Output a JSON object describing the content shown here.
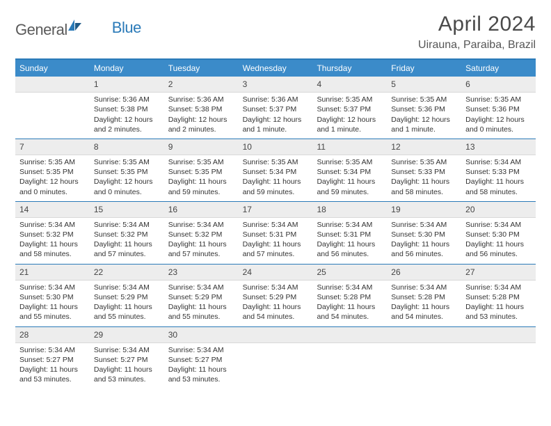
{
  "logo": {
    "text1": "General",
    "text2": "Blue"
  },
  "title": "April 2024",
  "location": "Uirauna, Paraiba, Brazil",
  "day_names": [
    "Sunday",
    "Monday",
    "Tuesday",
    "Wednesday",
    "Thursday",
    "Friday",
    "Saturday"
  ],
  "colors": {
    "header_bar": "#3b8bc9",
    "accent_line": "#2a7ab8",
    "daynum_bg": "#ededed"
  },
  "weeks": [
    [
      null,
      {
        "n": "1",
        "sr": "Sunrise: 5:36 AM",
        "ss": "Sunset: 5:38 PM",
        "dl": "Daylight: 12 hours and 2 minutes."
      },
      {
        "n": "2",
        "sr": "Sunrise: 5:36 AM",
        "ss": "Sunset: 5:38 PM",
        "dl": "Daylight: 12 hours and 2 minutes."
      },
      {
        "n": "3",
        "sr": "Sunrise: 5:36 AM",
        "ss": "Sunset: 5:37 PM",
        "dl": "Daylight: 12 hours and 1 minute."
      },
      {
        "n": "4",
        "sr": "Sunrise: 5:35 AM",
        "ss": "Sunset: 5:37 PM",
        "dl": "Daylight: 12 hours and 1 minute."
      },
      {
        "n": "5",
        "sr": "Sunrise: 5:35 AM",
        "ss": "Sunset: 5:36 PM",
        "dl": "Daylight: 12 hours and 1 minute."
      },
      {
        "n": "6",
        "sr": "Sunrise: 5:35 AM",
        "ss": "Sunset: 5:36 PM",
        "dl": "Daylight: 12 hours and 0 minutes."
      }
    ],
    [
      {
        "n": "7",
        "sr": "Sunrise: 5:35 AM",
        "ss": "Sunset: 5:35 PM",
        "dl": "Daylight: 12 hours and 0 minutes."
      },
      {
        "n": "8",
        "sr": "Sunrise: 5:35 AM",
        "ss": "Sunset: 5:35 PM",
        "dl": "Daylight: 12 hours and 0 minutes."
      },
      {
        "n": "9",
        "sr": "Sunrise: 5:35 AM",
        "ss": "Sunset: 5:35 PM",
        "dl": "Daylight: 11 hours and 59 minutes."
      },
      {
        "n": "10",
        "sr": "Sunrise: 5:35 AM",
        "ss": "Sunset: 5:34 PM",
        "dl": "Daylight: 11 hours and 59 minutes."
      },
      {
        "n": "11",
        "sr": "Sunrise: 5:35 AM",
        "ss": "Sunset: 5:34 PM",
        "dl": "Daylight: 11 hours and 59 minutes."
      },
      {
        "n": "12",
        "sr": "Sunrise: 5:35 AM",
        "ss": "Sunset: 5:33 PM",
        "dl": "Daylight: 11 hours and 58 minutes."
      },
      {
        "n": "13",
        "sr": "Sunrise: 5:34 AM",
        "ss": "Sunset: 5:33 PM",
        "dl": "Daylight: 11 hours and 58 minutes."
      }
    ],
    [
      {
        "n": "14",
        "sr": "Sunrise: 5:34 AM",
        "ss": "Sunset: 5:32 PM",
        "dl": "Daylight: 11 hours and 58 minutes."
      },
      {
        "n": "15",
        "sr": "Sunrise: 5:34 AM",
        "ss": "Sunset: 5:32 PM",
        "dl": "Daylight: 11 hours and 57 minutes."
      },
      {
        "n": "16",
        "sr": "Sunrise: 5:34 AM",
        "ss": "Sunset: 5:32 PM",
        "dl": "Daylight: 11 hours and 57 minutes."
      },
      {
        "n": "17",
        "sr": "Sunrise: 5:34 AM",
        "ss": "Sunset: 5:31 PM",
        "dl": "Daylight: 11 hours and 57 minutes."
      },
      {
        "n": "18",
        "sr": "Sunrise: 5:34 AM",
        "ss": "Sunset: 5:31 PM",
        "dl": "Daylight: 11 hours and 56 minutes."
      },
      {
        "n": "19",
        "sr": "Sunrise: 5:34 AM",
        "ss": "Sunset: 5:30 PM",
        "dl": "Daylight: 11 hours and 56 minutes."
      },
      {
        "n": "20",
        "sr": "Sunrise: 5:34 AM",
        "ss": "Sunset: 5:30 PM",
        "dl": "Daylight: 11 hours and 56 minutes."
      }
    ],
    [
      {
        "n": "21",
        "sr": "Sunrise: 5:34 AM",
        "ss": "Sunset: 5:30 PM",
        "dl": "Daylight: 11 hours and 55 minutes."
      },
      {
        "n": "22",
        "sr": "Sunrise: 5:34 AM",
        "ss": "Sunset: 5:29 PM",
        "dl": "Daylight: 11 hours and 55 minutes."
      },
      {
        "n": "23",
        "sr": "Sunrise: 5:34 AM",
        "ss": "Sunset: 5:29 PM",
        "dl": "Daylight: 11 hours and 55 minutes."
      },
      {
        "n": "24",
        "sr": "Sunrise: 5:34 AM",
        "ss": "Sunset: 5:29 PM",
        "dl": "Daylight: 11 hours and 54 minutes."
      },
      {
        "n": "25",
        "sr": "Sunrise: 5:34 AM",
        "ss": "Sunset: 5:28 PM",
        "dl": "Daylight: 11 hours and 54 minutes."
      },
      {
        "n": "26",
        "sr": "Sunrise: 5:34 AM",
        "ss": "Sunset: 5:28 PM",
        "dl": "Daylight: 11 hours and 54 minutes."
      },
      {
        "n": "27",
        "sr": "Sunrise: 5:34 AM",
        "ss": "Sunset: 5:28 PM",
        "dl": "Daylight: 11 hours and 53 minutes."
      }
    ],
    [
      {
        "n": "28",
        "sr": "Sunrise: 5:34 AM",
        "ss": "Sunset: 5:27 PM",
        "dl": "Daylight: 11 hours and 53 minutes."
      },
      {
        "n": "29",
        "sr": "Sunrise: 5:34 AM",
        "ss": "Sunset: 5:27 PM",
        "dl": "Daylight: 11 hours and 53 minutes."
      },
      {
        "n": "30",
        "sr": "Sunrise: 5:34 AM",
        "ss": "Sunset: 5:27 PM",
        "dl": "Daylight: 11 hours and 53 minutes."
      },
      null,
      null,
      null,
      null
    ]
  ]
}
